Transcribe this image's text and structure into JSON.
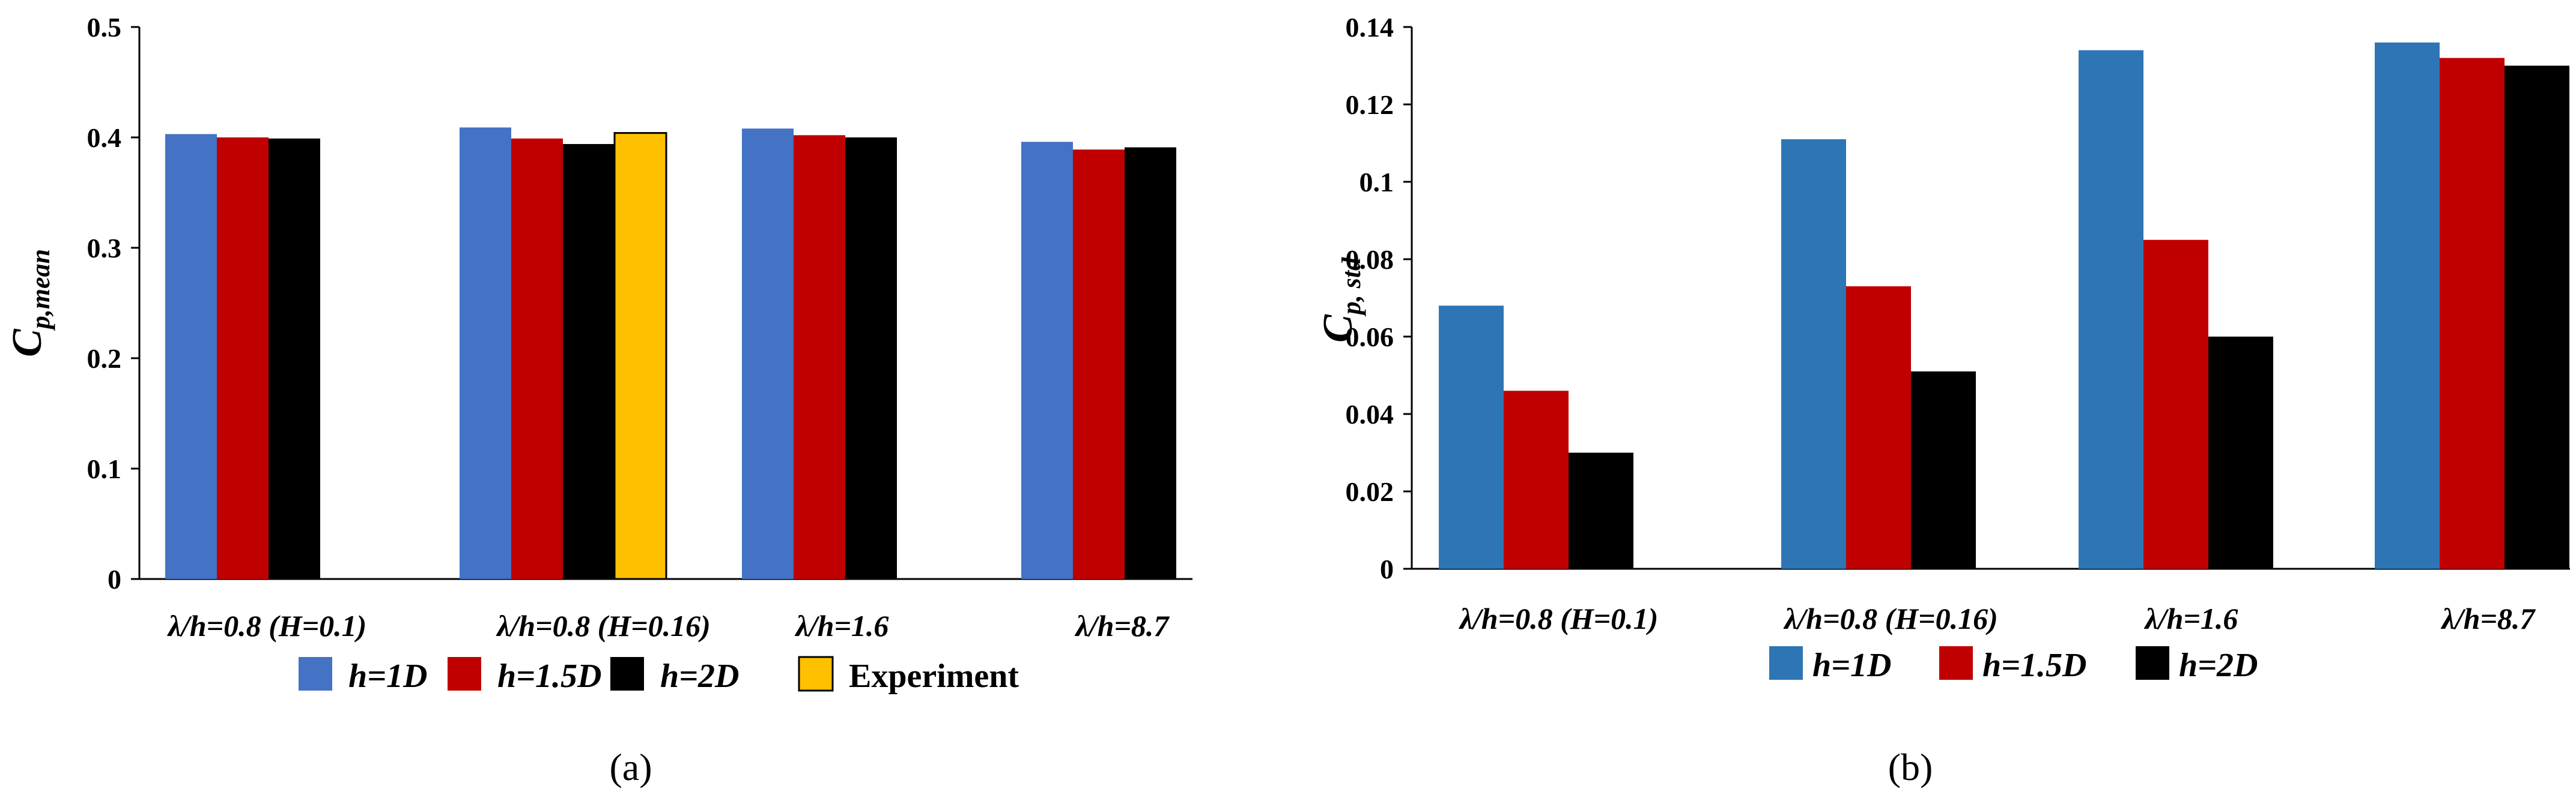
{
  "chart_data": [
    {
      "type": "bar",
      "panel": "(a)",
      "title": "",
      "xlabel": "",
      "ylabel": {
        "main": "C",
        "sub": "p,mean"
      },
      "ylim": [
        0,
        0.5
      ],
      "yticks": [
        "0",
        "0.1",
        "0.2",
        "0.3",
        "0.4",
        "0.5"
      ],
      "ytick_values": [
        0,
        0.1,
        0.2,
        0.3,
        0.4,
        0.5
      ],
      "grid": false,
      "legend_position": "bottom",
      "categories": [
        "λ/h=0.8 (H=0.1)",
        "λ/h=0.8 (H=0.16)",
        "λ/h=1.6",
        "λ/h=8.7"
      ],
      "series": [
        {
          "name": "h=1D",
          "color": "#4472C4",
          "values": [
            0.403,
            0.409,
            0.408,
            0.396
          ]
        },
        {
          "name": "h=1.5D",
          "color": "#C00000",
          "values": [
            0.4,
            0.399,
            0.402,
            0.389
          ]
        },
        {
          "name": "h=2D",
          "color": "#000000",
          "values": [
            0.399,
            0.394,
            0.4,
            0.391
          ]
        },
        {
          "name": "Experiment",
          "color": "#FFC000",
          "values": [
            null,
            0.404,
            null,
            null
          ]
        }
      ]
    },
    {
      "type": "bar",
      "panel": "(b)",
      "title": "",
      "xlabel": "",
      "ylabel": {
        "main": "C",
        "sub": "p, std"
      },
      "ylim": [
        0,
        0.14
      ],
      "yticks": [
        "0",
        "0.02",
        "0.04",
        "0.06",
        "0.08",
        "0.1",
        "0.12",
        "0.14"
      ],
      "ytick_values": [
        0,
        0.02,
        0.04,
        0.06,
        0.08,
        0.1,
        0.12,
        0.14
      ],
      "grid": false,
      "legend_position": "bottom",
      "categories": [
        "λ/h=0.8 (H=0.1)",
        "λ/h=0.8 (H=0.16)",
        "λ/h=1.6",
        "λ/h=8.7"
      ],
      "series": [
        {
          "name": "h=1D",
          "color": "#2E75B6",
          "values": [
            0.068,
            0.111,
            0.134,
            0.136
          ]
        },
        {
          "name": "h=1.5D",
          "color": "#C00000",
          "values": [
            0.046,
            0.073,
            0.085,
            0.132
          ]
        },
        {
          "name": "h=2D",
          "color": "#000000",
          "values": [
            0.03,
            0.051,
            0.06,
            0.13
          ]
        }
      ]
    }
  ]
}
